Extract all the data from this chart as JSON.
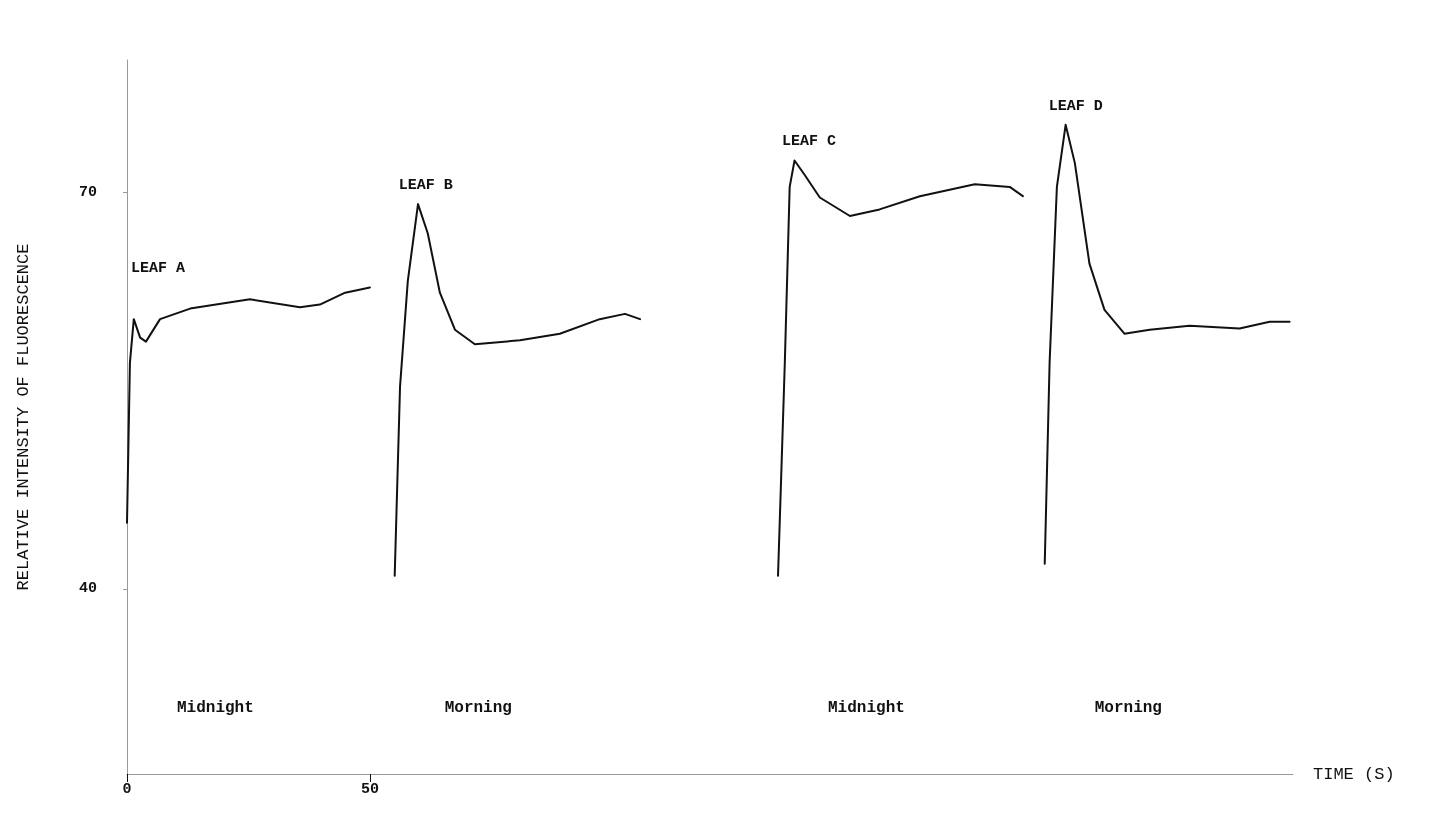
{
  "chart_data": {
    "type": "line",
    "xlabel": "TIME (S)",
    "ylabel": "RELATIVE INTENSITY OF FLUORESCENCE",
    "annotations": [
      "Midnight",
      "Morning",
      "Midnight",
      "Morning"
    ],
    "xlim": [
      0,
      240
    ],
    "xticks": [
      0,
      50
    ],
    "ylim": [
      26,
      80
    ],
    "yticks": [
      40,
      70
    ],
    "marker": "none",
    "line_style": "solid",
    "series": [
      {
        "name": "LEAF A",
        "color": "#111111",
        "x": [
          0,
          0.6,
          1.4,
          2.7,
          3.9,
          6.8,
          13,
          25.3,
          35.6,
          39.7,
          44.9,
          50
        ],
        "values": [
          45.0,
          57.1,
          60.4,
          59.0,
          58.7,
          60.4,
          61.2,
          61.9,
          61.3,
          61.5,
          62.4,
          62.8
        ]
      },
      {
        "name": "LEAF B",
        "color": "#111111",
        "x": [
          55.1,
          56.2,
          57.8,
          59.9,
          61.9,
          64.4,
          67.5,
          71.6,
          80.9,
          89.1,
          97.3,
          102.5,
          105.6
        ],
        "values": [
          41.0,
          55.3,
          63.3,
          69.1,
          66.9,
          62.4,
          59.6,
          58.5,
          58.8,
          59.3,
          60.4,
          60.8,
          60.4
        ]
      },
      {
        "name": "LEAF C",
        "color": "#111111",
        "x": [
          134.0,
          135.4,
          136.4,
          137.4,
          139.5,
          142.6,
          148.8,
          154.9,
          163.2,
          174.5,
          181.7,
          184.4
        ],
        "values": [
          41.0,
          57.1,
          70.4,
          72.4,
          71.3,
          69.6,
          68.2,
          68.7,
          69.7,
          70.6,
          70.4,
          69.7
        ]
      },
      {
        "name": "LEAF D",
        "color": "#111111",
        "x": [
          188.9,
          189.9,
          191.4,
          193.2,
          195.1,
          198.1,
          201.2,
          205.3,
          210.5,
          218.7,
          229.0,
          235.2,
          239.3
        ],
        "values": [
          41.9,
          57.1,
          70.4,
          75.1,
          72.2,
          64.6,
          61.1,
          59.3,
          59.6,
          59.9,
          59.7,
          60.2,
          60.2
        ]
      }
    ]
  }
}
